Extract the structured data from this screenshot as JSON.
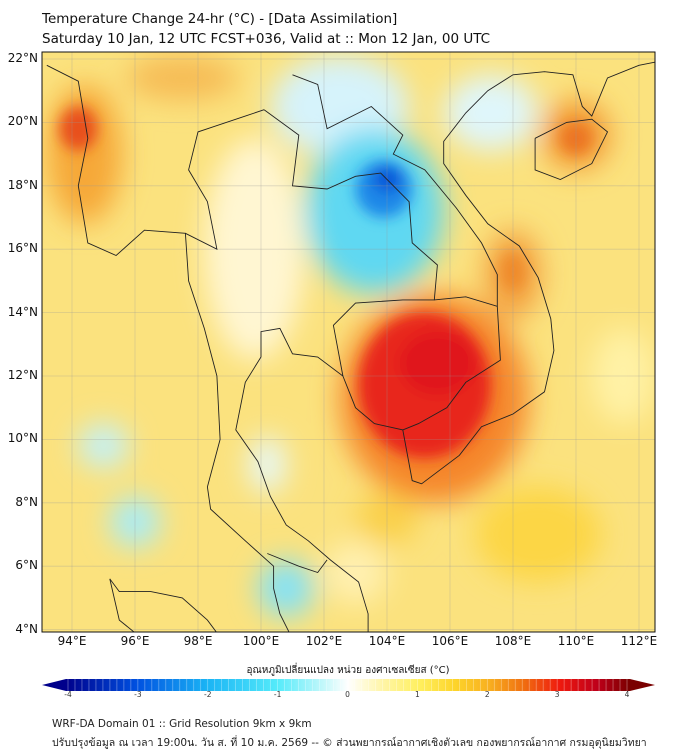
{
  "header": {
    "title": "Temperature Change 24-hr (°C) - [Data Assimilation]",
    "subtitle": "Saturday 10 Jan, 12 UTC FCST+036, Valid at :: Mon 12 Jan, 00 UTC"
  },
  "map": {
    "lon_range": [
      93.05,
      112.5
    ],
    "lat_range": [
      3.95,
      22.2
    ],
    "lat_ticks": [
      {
        "value": 22,
        "label": "22°N"
      },
      {
        "value": 20,
        "label": "20°N"
      },
      {
        "value": 18,
        "label": "18°N"
      },
      {
        "value": 16,
        "label": "16°N"
      },
      {
        "value": 14,
        "label": "14°N"
      },
      {
        "value": 12,
        "label": "12°N"
      },
      {
        "value": 10,
        "label": "10°N"
      },
      {
        "value": 8,
        "label": "8°N"
      },
      {
        "value": 6,
        "label": "6°N"
      },
      {
        "value": 4,
        "label": "4°N"
      }
    ],
    "lon_ticks": [
      {
        "value": 94,
        "label": "94°E"
      },
      {
        "value": 96,
        "label": "96°E"
      },
      {
        "value": 98,
        "label": "98°E"
      },
      {
        "value": 100,
        "label": "100°E"
      },
      {
        "value": 102,
        "label": "102°E"
      },
      {
        "value": 104,
        "label": "104°E"
      },
      {
        "value": 106,
        "label": "106°E"
      },
      {
        "value": 108,
        "label": "108°E"
      },
      {
        "value": 110,
        "label": "110°E"
      },
      {
        "value": 112,
        "label": "112°E"
      }
    ],
    "field_features": [
      {
        "name": "warm-core-cambodia",
        "lon": 105.3,
        "lat": 11.6,
        "value": 3.0
      },
      {
        "name": "cool-core-northeast-thailand",
        "lon": 103.8,
        "lat": 17.8,
        "value": -3.0
      },
      {
        "name": "warm-core-myanmar-west",
        "lon": 94.3,
        "lat": 19.7,
        "value": 2.5
      },
      {
        "name": "warm-core-hainan",
        "lon": 110.0,
        "lat": 19.5,
        "value": 2.3
      },
      {
        "name": "warm-core-central-vietnam",
        "lon": 108.0,
        "lat": 15.3,
        "value": 2.0
      }
    ]
  },
  "colorbar": {
    "label": "อุณหภูมิเปลี่ยนแปลง หน่วย องศาเซลเซียส (°C)",
    "min": -4,
    "max": 4,
    "ticks": [
      "-4",
      "-3",
      "-2",
      "-1",
      "0",
      "1",
      "2",
      "3",
      "4"
    ],
    "colors": {
      "-4": "#00008b",
      "-3": "#0050e0",
      "-2": "#1ab4f5",
      "-1": "#55ebfa",
      "0": "#ffffff",
      "1": "#fff060",
      "2": "#f8b020",
      "3": "#ef1a0e",
      "4": "#7a0000"
    }
  },
  "footer": {
    "line1": "WRF-DA Domain 01 :: Grid Resolution 9km x 9km",
    "line2": "ปรับปรุงข้อมูล ณ เวลา 19:00น. วัน ส. ที่ 10 ม.ค. 2569 -- © ส่วนพยากรณ์อากาศเชิงตัวเลข กองพยากรณ์อากาศ กรมอุตุนิยมวิทยา"
  }
}
